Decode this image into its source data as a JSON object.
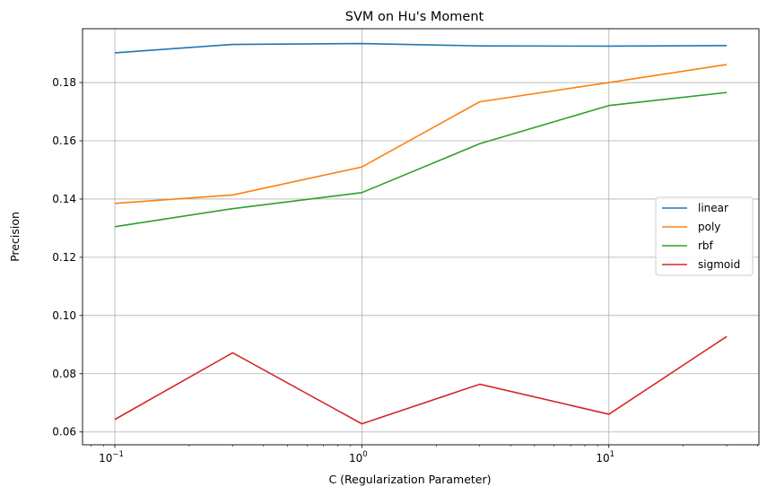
{
  "chart_data": {
    "type": "line",
    "title": "SVM on Hu's Moment",
    "xlabel": "C (Regularization Parameter)",
    "ylabel": "Precision",
    "xscale": "log",
    "x": [
      0.1,
      0.3,
      1,
      3,
      10,
      30
    ],
    "xlim": [
      0.074,
      40.5
    ],
    "ylim": [
      0.0556,
      0.1985
    ],
    "x_ticks": [
      {
        "value": 0.1,
        "base": "10",
        "exp": "−1"
      },
      {
        "value": 1,
        "base": "10",
        "exp": "0"
      },
      {
        "value": 10,
        "base": "10",
        "exp": "1"
      }
    ],
    "y_ticks": [
      {
        "value": 0.06,
        "label": "0.06"
      },
      {
        "value": 0.08,
        "label": "0.08"
      },
      {
        "value": 0.1,
        "label": "0.10"
      },
      {
        "value": 0.12,
        "label": "0.12"
      },
      {
        "value": 0.14,
        "label": "0.14"
      },
      {
        "value": 0.16,
        "label": "0.16"
      },
      {
        "value": 0.18,
        "label": "0.18"
      }
    ],
    "grid": true,
    "legend_position": "center-right",
    "series": [
      {
        "name": "linear",
        "color": "#1f77b4",
        "values": [
          0.1902,
          0.1931,
          0.1934,
          0.1926,
          0.1925,
          0.1927
        ]
      },
      {
        "name": "poly",
        "color": "#ff7f0e",
        "values": [
          0.1385,
          0.1414,
          0.151,
          0.1734,
          0.18,
          0.1862
        ]
      },
      {
        "name": "rbf",
        "color": "#2ca02c",
        "values": [
          0.1305,
          0.1367,
          0.1422,
          0.159,
          0.1721,
          0.1766
        ]
      },
      {
        "name": "sigmoid",
        "color": "#d62728",
        "values": [
          0.0643,
          0.0872,
          0.0628,
          0.0764,
          0.0661,
          0.0928
        ]
      }
    ]
  }
}
